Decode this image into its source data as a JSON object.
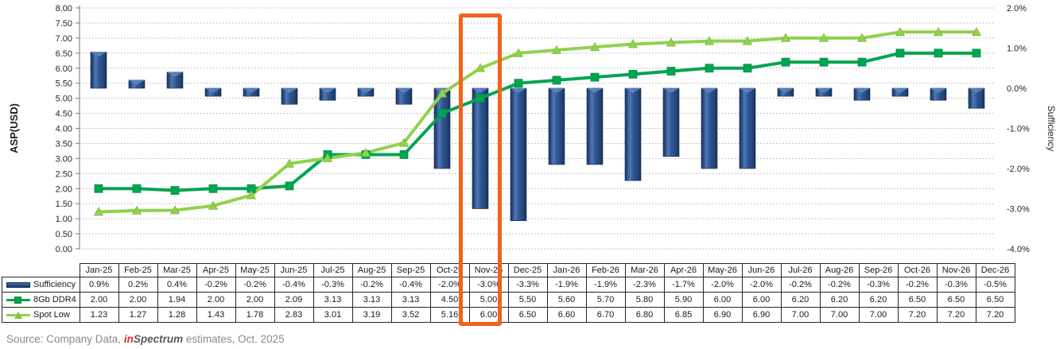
{
  "chart_data": {
    "type": "combo",
    "categories": [
      "Jan-25",
      "Feb-25",
      "Mar-25",
      "Apr-25",
      "May-25",
      "Jun-25",
      "Jul-25",
      "Aug-25",
      "Sep-25",
      "Oct-25",
      "Nov-25",
      "Dec-25",
      "Jan-26",
      "Feb-26",
      "Mar-26",
      "Apr-26",
      "May-26",
      "Jun-26",
      "Jul-26",
      "Aug-26",
      "Sep-26",
      "Oct-26",
      "Nov-26",
      "Dec-26"
    ],
    "series": [
      {
        "name": "Sufficiency",
        "type": "bar",
        "axis": "right",
        "unit": "%",
        "color": "#2E5391",
        "values": [
          0.9,
          0.2,
          0.4,
          -0.2,
          -0.2,
          -0.4,
          -0.3,
          -0.2,
          -0.4,
          -2.0,
          -3.0,
          -3.3,
          -1.9,
          -1.9,
          -2.3,
          -1.7,
          -2.0,
          -2.0,
          -0.2,
          -0.2,
          -0.3,
          -0.2,
          -0.3,
          -0.5
        ]
      },
      {
        "name": "8Gb DDR4",
        "type": "line",
        "axis": "left",
        "marker": "square",
        "color": "#00A550",
        "values": [
          2.0,
          2.0,
          1.94,
          2.0,
          2.0,
          2.09,
          3.13,
          3.13,
          3.13,
          4.5,
          5.0,
          5.5,
          5.6,
          5.7,
          5.8,
          5.9,
          6.0,
          6.0,
          6.2,
          6.2,
          6.2,
          6.5,
          6.5,
          6.5
        ]
      },
      {
        "name": "Spot Low",
        "type": "line",
        "axis": "left",
        "marker": "triangle",
        "color": "#92D050",
        "values": [
          1.23,
          1.27,
          1.28,
          1.43,
          1.78,
          2.83,
          3.01,
          3.19,
          3.52,
          5.16,
          6.0,
          6.5,
          6.6,
          6.7,
          6.8,
          6.85,
          6.9,
          6.9,
          7.0,
          7.0,
          7.0,
          7.2,
          7.2,
          7.2
        ]
      }
    ],
    "left_axis": {
      "title": "ASP(USD)",
      "min": 0,
      "max": 8,
      "step": 0.5,
      "tick_labels": [
        "8.00",
        "7.50",
        "7.00",
        "6.50",
        "6.00",
        "5.50",
        "5.00",
        "4.50",
        "4.00",
        "3.50",
        "3.00",
        "2.50",
        "2.00",
        "1.50",
        "1.00",
        "0.50",
        "0.00"
      ]
    },
    "right_axis": {
      "title": "Sufficiency",
      "min": -4,
      "max": 2,
      "step": 1,
      "tick_labels": [
        "2.0%",
        "1.0%",
        "0.0%",
        "-1.0%",
        "-2.0%",
        "-3.0%",
        "-4.0%"
      ]
    },
    "grid": "dotted horizontal",
    "legend_position": "table-left",
    "highlight": {
      "category": "Nov-25",
      "index": 10,
      "color": "#F4611A"
    }
  },
  "colors": {
    "bar_dark": "#16335F",
    "bar_light": "#4F78B4",
    "bar_mid": "#2E5391",
    "ddr4_green": "#00A550",
    "spot_green": "#92D050",
    "gridline": "#B0B0B0",
    "axis_line": "#8C8C8C",
    "highlight_orange": "#F4611A",
    "text": "#262626"
  },
  "source": {
    "prefix": "Source: Company Data, ",
    "brand_in": "in",
    "brand_rest": "Spectrum",
    "suffix": " estimates,  Oct. 2025"
  }
}
